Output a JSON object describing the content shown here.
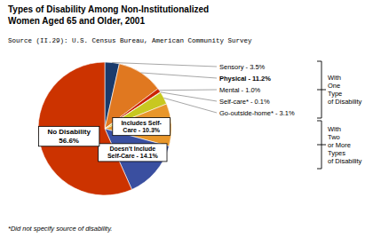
{
  "chart_data": {
    "type": "pie",
    "title": "Types of Disability Among Non-Institutionalized\nWomen Aged 65 and Older, 2001",
    "categories": [
      "Sensory - 3.5%",
      "Physical - 11.2%",
      "Mental - 1.0%",
      "Self-care* - 0.1%",
      "Go-outside-home* - 3.1%",
      "Includes Self-\nCare - 10.3%",
      "Doesn't Include\nSelf-Care - 14.1%",
      "No Disability\n56.6%"
    ],
    "values": [
      3.5,
      11.2,
      1.0,
      0.1,
      3.1,
      10.3,
      14.1,
      56.6
    ],
    "colors": [
      "#1A3A6B",
      "#E07820",
      "#CC2200",
      "#880066",
      "#C8C820",
      "#E8962A",
      "#3A4FA0",
      "#CC3300"
    ],
    "annotations": [
      "Source (II.29): U.S. Census Bureau, American Community Survey",
      "*Did not specify source of disability.",
      "With\nOne\nType\nof Disability",
      "With\nTwo\nor More\nTypes\nof Disability"
    ]
  }
}
